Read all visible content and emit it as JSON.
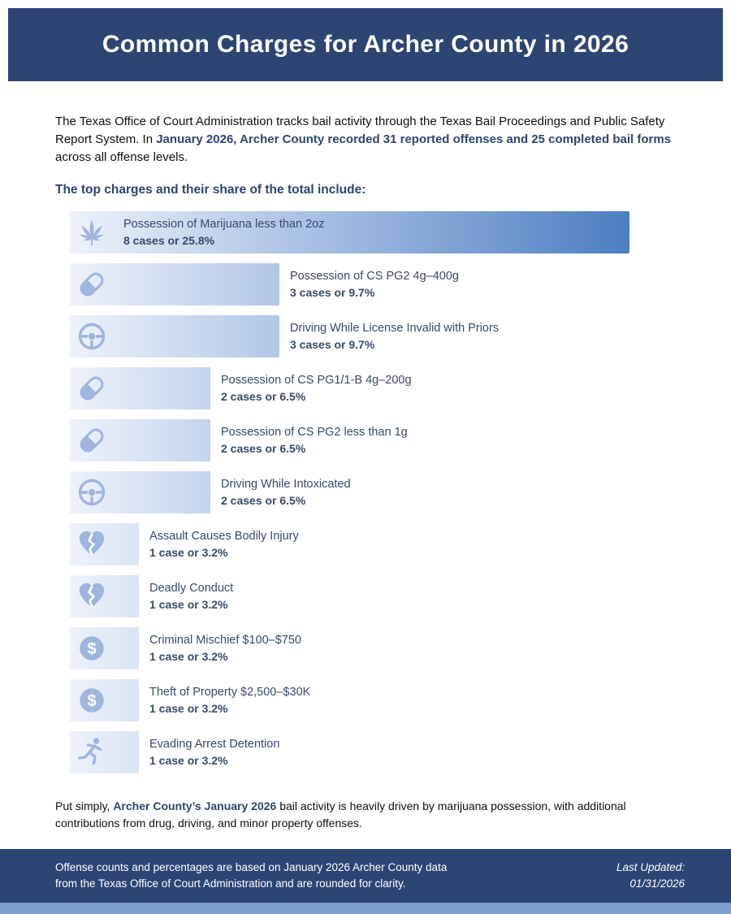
{
  "header": {
    "title": "Common Charges for Archer County in 2026"
  },
  "intro": {
    "pre": "The Texas Office of Court Administration tracks bail activity through the Texas Bail Proceedings and Public Safety Report System. In ",
    "highlight": "January 2026, Archer County recorded 31 reported offenses and 25 completed bail forms",
    "post": " across all offense levels."
  },
  "section_heading": "The top charges and their share of the total include:",
  "chart_data": {
    "type": "bar",
    "orientation": "horizontal",
    "value_unit": "percent of total reported offenses",
    "x_max_percent": 25.8,
    "items": [
      {
        "icon": "cannabis-leaf",
        "label": "Possession of Marijuana less than 2oz",
        "cases": 8,
        "percent": 25.8,
        "value_label": "8 cases or 25.8%"
      },
      {
        "icon": "pill",
        "label": "Possession of CS PG2 4g–400g",
        "cases": 3,
        "percent": 9.7,
        "value_label": "3 cases or 9.7%"
      },
      {
        "icon": "steering-wheel",
        "label": "Driving While License Invalid with Priors",
        "cases": 3,
        "percent": 9.7,
        "value_label": "3 cases or 9.7%"
      },
      {
        "icon": "pill",
        "label": "Possession of CS PG1/1-B 4g–200g",
        "cases": 2,
        "percent": 6.5,
        "value_label": "2 cases or 6.5%"
      },
      {
        "icon": "pill",
        "label": "Possession of CS PG2 less than 1g",
        "cases": 2,
        "percent": 6.5,
        "value_label": "2 cases or 6.5%"
      },
      {
        "icon": "steering-wheel",
        "label": "Driving While Intoxicated",
        "cases": 2,
        "percent": 6.5,
        "value_label": "2 cases or 6.5%"
      },
      {
        "icon": "broken-heart",
        "label": "Assault Causes Bodily Injury",
        "cases": 1,
        "percent": 3.2,
        "value_label": "1 case or 3.2%"
      },
      {
        "icon": "broken-heart",
        "label": "Deadly Conduct",
        "cases": 1,
        "percent": 3.2,
        "value_label": "1 case or 3.2%"
      },
      {
        "icon": "dollar",
        "label": "Criminal Mischief $100–$750",
        "cases": 1,
        "percent": 3.2,
        "value_label": "1 case or 3.2%"
      },
      {
        "icon": "dollar",
        "label": "Theft of Property $2,500–$30K",
        "cases": 1,
        "percent": 3.2,
        "value_label": "1 case or 3.2%"
      },
      {
        "icon": "running-person",
        "label": "Evading Arrest Detention",
        "cases": 1,
        "percent": 3.2,
        "value_label": "1 case or 3.2%"
      }
    ]
  },
  "summary": {
    "pre": "Put simply, ",
    "highlight": "Archer County’s January 2026",
    "post": " bail activity is heavily driven by marijuana possession, with additional contributions from drug, driving, and minor property offenses."
  },
  "footer": {
    "note": "Offense counts and percentages are based on January 2026 Archer County data from the Texas Office of Court Administration and are rounded for clarity.",
    "updated_label": "Last Updated:",
    "updated_date": "01/31/2026"
  },
  "colors": {
    "accent": "#2d4573",
    "header_bg": "#2d4573",
    "footer_bg": "#2d4573",
    "bar_gradient_start": "#eef2fa",
    "bar_gradient_end": "#4c7ec3",
    "icon": "#9fb5e0",
    "bar_text": "#37496e",
    "bottom_strip": "#7f9cce"
  }
}
